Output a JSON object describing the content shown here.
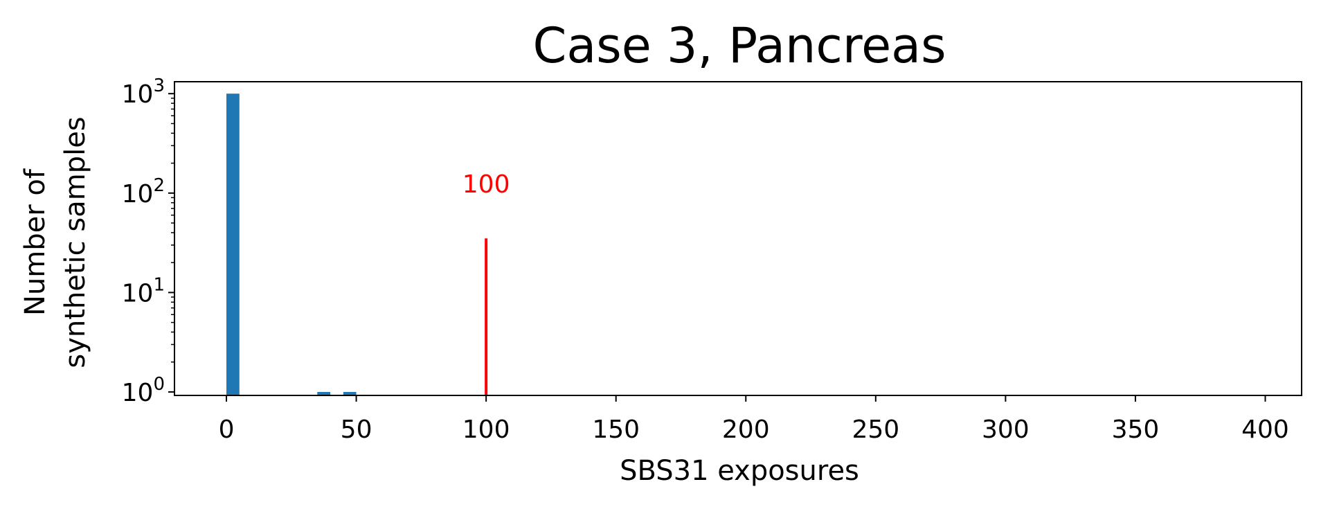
{
  "chart_data": {
    "type": "bar",
    "title": "Case 3, Pancreas",
    "xlabel": "SBS31 exposures",
    "ylabel_lines": [
      "Number of",
      "synthetic samples"
    ],
    "xlim": [
      -20,
      414
    ],
    "ylim_log10": [
      -0.035,
      3.12
    ],
    "yscale": "log",
    "x_ticks": [
      0,
      50,
      100,
      150,
      200,
      250,
      300,
      350,
      400
    ],
    "y_ticks": [
      {
        "base": "10",
        "exp": "0",
        "value": 1
      },
      {
        "base": "10",
        "exp": "1",
        "value": 10
      },
      {
        "base": "10",
        "exp": "2",
        "value": 100
      },
      {
        "base": "10",
        "exp": "3",
        "value": 1000
      }
    ],
    "bin_width": 5,
    "bars": [
      {
        "x_start": 0,
        "count": 1000
      },
      {
        "x_start": 35,
        "count": 1
      },
      {
        "x_start": 45,
        "count": 1
      }
    ],
    "bar_color": "#1f77b4",
    "marker": {
      "x": 100,
      "top_value": 35,
      "label": "100",
      "color": "#ff0000"
    },
    "grid": false
  }
}
